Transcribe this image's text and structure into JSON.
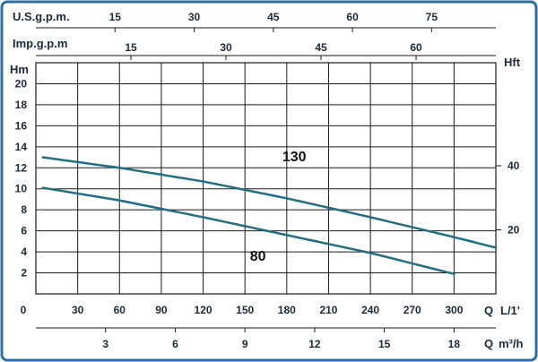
{
  "chart_data": {
    "type": "line",
    "title": "",
    "colors": {
      "frame": "#2b6fa6",
      "curve": "#1f6f86",
      "grid": "#1a1a1a",
      "text": "#1a2a3a"
    },
    "x_axis_primary": {
      "label": "Q",
      "unit": "L/1'",
      "range": [
        0,
        330
      ],
      "ticks": [
        0,
        30,
        60,
        90,
        120,
        150,
        180,
        210,
        240,
        270,
        300
      ],
      "tick_labels": [
        "0",
        "30",
        "60",
        "90",
        "120",
        "150",
        "180",
        "210",
        "240",
        "270",
        "300"
      ]
    },
    "x_axis_m3h": {
      "label": "Q",
      "unit": "m³/h",
      "ticks": [
        3,
        6,
        9,
        12,
        15,
        18
      ],
      "tick_labels": [
        "3",
        "6",
        "9",
        "12",
        "15",
        "18"
      ]
    },
    "x_axis_usgpm": {
      "label": "U.S.g.p.m.",
      "ticks": [
        15,
        30,
        45,
        60,
        75
      ],
      "tick_labels": [
        "15",
        "30",
        "45",
        "60",
        "75"
      ]
    },
    "x_axis_impgpm": {
      "label": "Imp.g.p.m",
      "ticks": [
        15,
        30,
        45,
        60
      ],
      "tick_labels": [
        "15",
        "30",
        "45",
        "60"
      ]
    },
    "y_axis_left": {
      "label": "Hm",
      "range": [
        0,
        22
      ],
      "ticks": [
        2,
        4,
        6,
        8,
        10,
        12,
        14,
        16,
        18,
        20
      ],
      "tick_labels": [
        "2",
        "4",
        "6",
        "8",
        "10",
        "12",
        "14",
        "16",
        "18",
        "20"
      ]
    },
    "y_axis_right": {
      "label": "Hft",
      "ticks": [
        20,
        40
      ],
      "tick_labels": [
        "20",
        "40"
      ]
    },
    "series": [
      {
        "name": "130",
        "x": [
          5,
          60,
          120,
          180,
          240,
          300,
          330
        ],
        "y": [
          13.0,
          12.0,
          10.7,
          9.1,
          7.3,
          5.4,
          4.4
        ]
      },
      {
        "name": "80",
        "x": [
          5,
          60,
          120,
          180,
          240,
          300
        ],
        "y": [
          10.1,
          8.9,
          7.3,
          5.6,
          3.9,
          1.9
        ]
      }
    ],
    "grid": true
  }
}
